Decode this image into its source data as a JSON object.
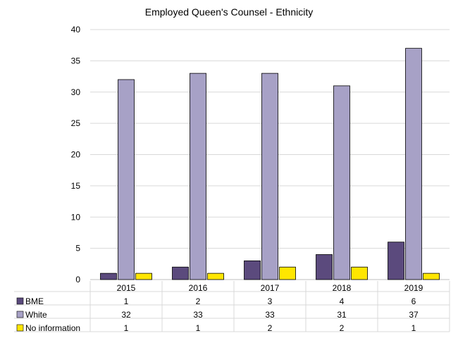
{
  "chart_data": {
    "type": "bar",
    "title": "Employed Queen's Counsel - Ethnicity",
    "xlabel": "",
    "ylabel": "",
    "categories": [
      "2015",
      "2016",
      "2017",
      "2018",
      "2019"
    ],
    "series": [
      {
        "name": "BME",
        "values": [
          1,
          2,
          3,
          4,
          6
        ],
        "color": "#5b4a7d"
      },
      {
        "name": "White",
        "values": [
          32,
          33,
          33,
          31,
          37
        ],
        "color": "#a7a1c6"
      },
      {
        "name": "No information",
        "values": [
          1,
          1,
          2,
          2,
          1
        ],
        "color": "#ffe600"
      }
    ],
    "ylim": [
      0,
      40
    ],
    "yticks": [
      0,
      5,
      10,
      15,
      20,
      25,
      30,
      35,
      40
    ],
    "grid": true,
    "legend": "data-table-below"
  }
}
